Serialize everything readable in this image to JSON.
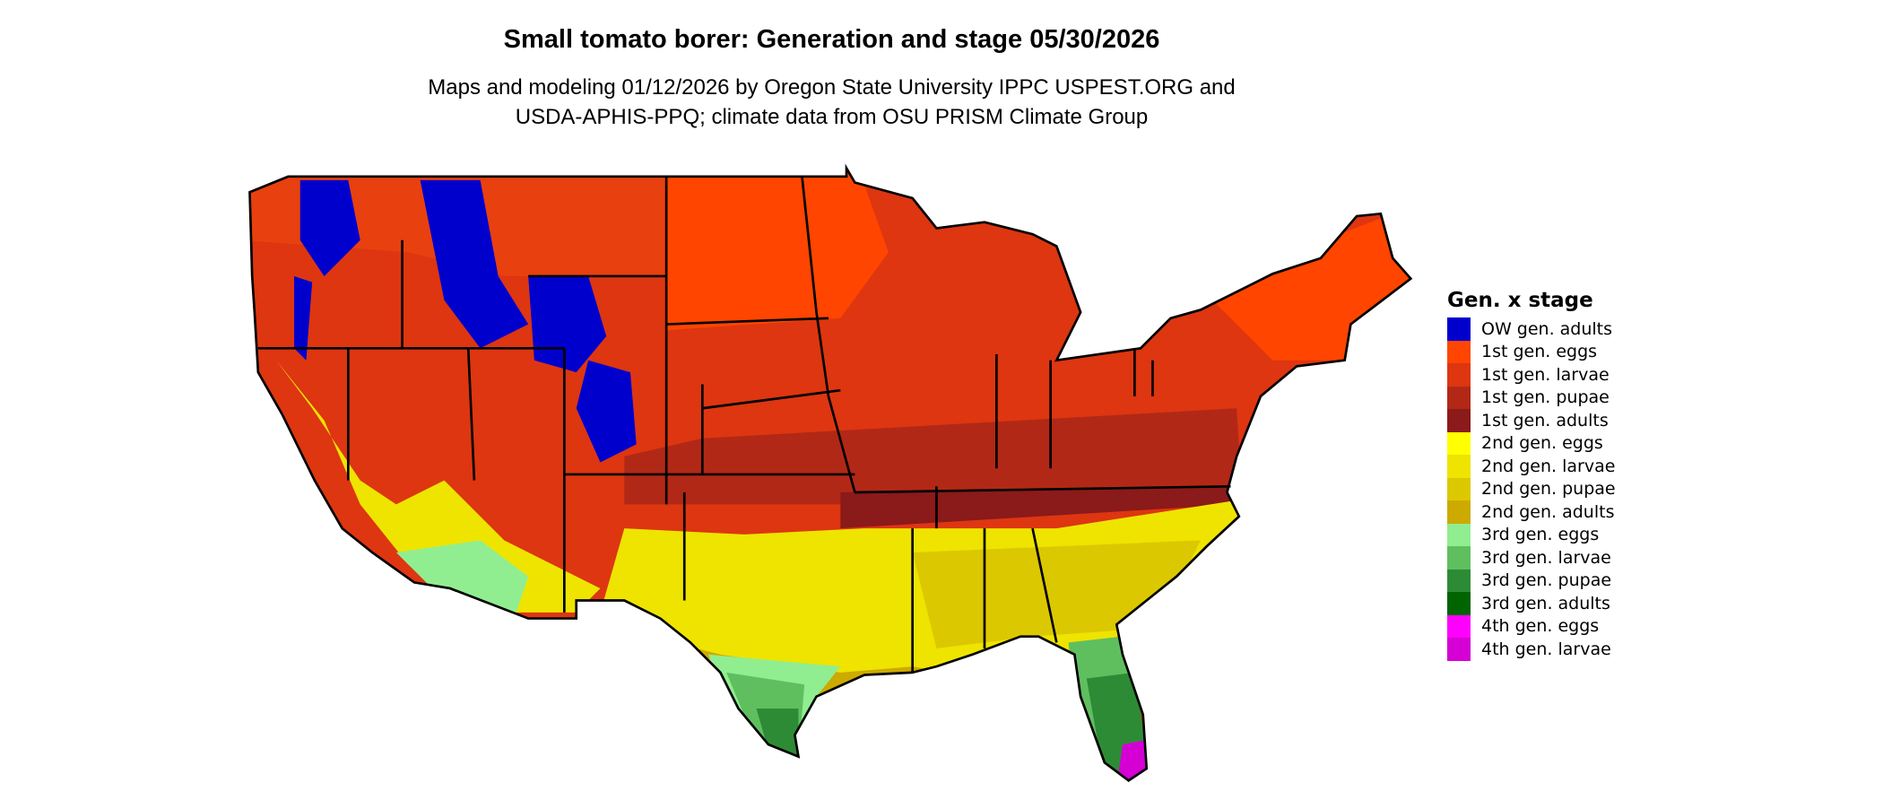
{
  "title": "Small tomato borer: Generation and stage 05/30/2026",
  "subtitle_lines": [
    "Maps and modeling 01/12/2026 by Oregon State University IPPC USPEST.ORG and",
    "USDA-APHIS-PPQ; climate data from OSU PRISM Climate Group"
  ],
  "legend": {
    "title": "Gen. x stage",
    "items": [
      {
        "label": "OW gen. adults",
        "color": "#0000cd"
      },
      {
        "label": "1st gen. eggs",
        "color": "#ff4500"
      },
      {
        "label": "1st gen. larvae",
        "color": "#dd3611"
      },
      {
        "label": "1st gen. pupae",
        "color": "#b22816"
      },
      {
        "label": "1st gen. adults",
        "color": "#8b1a1a"
      },
      {
        "label": "2nd gen. eggs",
        "color": "#ffff00"
      },
      {
        "label": "2nd gen. larvae",
        "color": "#eee400"
      },
      {
        "label": "2nd gen. pupae",
        "color": "#dcc800"
      },
      {
        "label": "2nd gen. adults",
        "color": "#cdaa00"
      },
      {
        "label": "3rd gen. eggs",
        "color": "#90ee90"
      },
      {
        "label": "3rd gen. larvae",
        "color": "#5fbf5f"
      },
      {
        "label": "3rd gen. pupae",
        "color": "#2e8b35"
      },
      {
        "label": "3rd gen. adults",
        "color": "#006400"
      },
      {
        "label": "4th gen. eggs",
        "color": "#ff00ff"
      },
      {
        "label": "4th gen. larvae",
        "color": "#d400d4"
      }
    ]
  }
}
